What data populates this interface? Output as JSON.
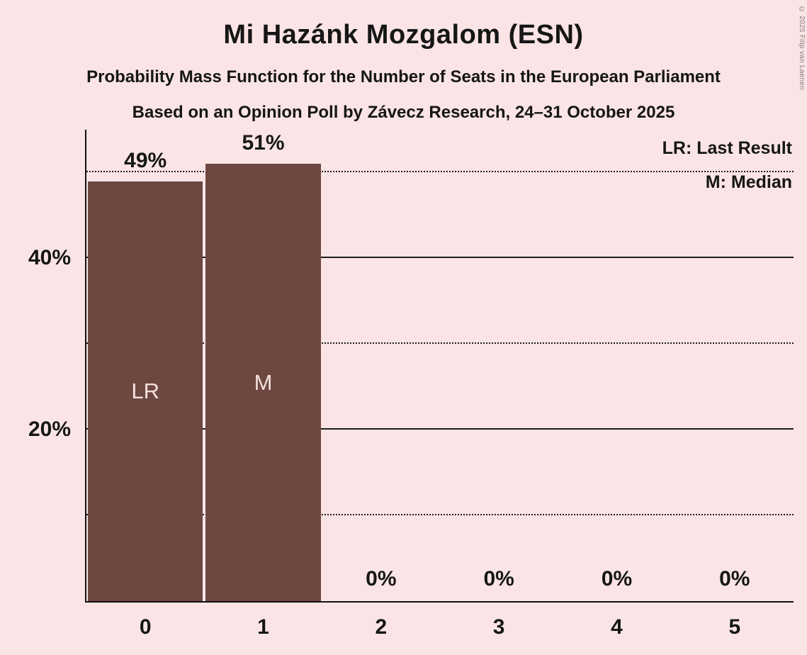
{
  "title": "Mi Hazánk Mozgalom (ESN)",
  "subtitles": {
    "line1": "Probability Mass Function for the Number of Seats in the European Parliament",
    "line2": "Based on an Opinion Poll by Závecz Research, 24–31 October 2025"
  },
  "legend": {
    "lr_label": "LR: Last Result",
    "m_label": "M: Median"
  },
  "copyright": "© 2025 Filip van Laenen",
  "colors": {
    "background": "#fae4e6",
    "bar": "#6d4840",
    "bar_label": "#f5dfdd",
    "text": "#161616"
  },
  "chart_data": {
    "type": "bar",
    "title": "Mi Hazánk Mozgalom (ESN)",
    "categories": [
      "0",
      "1",
      "2",
      "3",
      "4",
      "5"
    ],
    "values": [
      49,
      51,
      0,
      0,
      0,
      0
    ],
    "value_labels": [
      "49%",
      "51%",
      "0%",
      "0%",
      "0%",
      "0%"
    ],
    "bar_annotations": {
      "0": "LR",
      "1": "M"
    },
    "annotation_meanings": {
      "LR": "Last Result",
      "M": "Median"
    },
    "ylim": [
      0,
      55
    ],
    "yticks": [
      {
        "value": 20,
        "label": "20%"
      },
      {
        "value": 40,
        "label": "40%"
      }
    ],
    "gridlines": [
      {
        "value": 10,
        "style": "dotted"
      },
      {
        "value": 20,
        "style": "solid"
      },
      {
        "value": 30,
        "style": "dotted"
      },
      {
        "value": 40,
        "style": "solid"
      },
      {
        "value": 50,
        "style": "dotted"
      }
    ],
    "grid": true,
    "legend_position": "top-right"
  }
}
